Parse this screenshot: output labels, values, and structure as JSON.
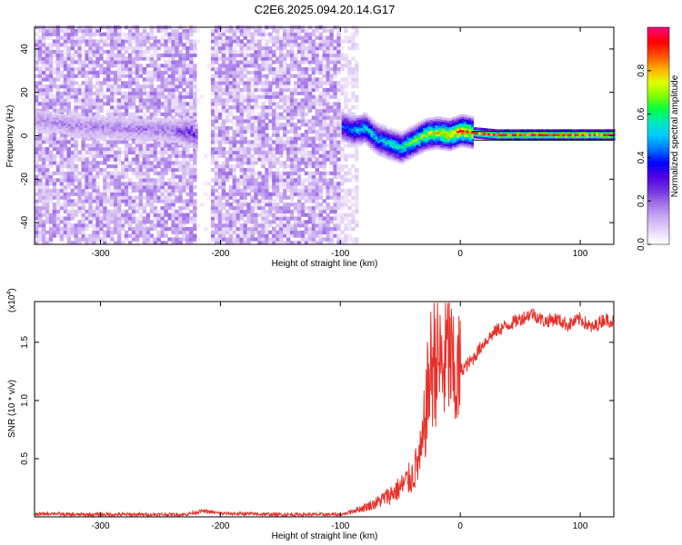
{
  "title": "C2E6.2025.094.20.14.G17",
  "chart_data": [
    {
      "type": "heatmap",
      "title": "C2E6.2025.094.20.14.G17",
      "xlabel": "Height of straight line (km)",
      "ylabel": "Frequency (Hz)",
      "xlim": [
        -355,
        128
      ],
      "ylim": [
        -50,
        50
      ],
      "xticks": [
        -300,
        -200,
        -100,
        0,
        100
      ],
      "yticks": [
        -40,
        -20,
        0,
        20,
        40
      ],
      "xtick_labels": [
        "-300",
        "-200",
        "-100",
        "0",
        "100"
      ],
      "ytick_labels": [
        "-40",
        "-20",
        "0",
        "20",
        "40"
      ],
      "colorbar": {
        "label": "Normalized spectral amplitude",
        "range": [
          0,
          1
        ],
        "ticks": [
          0.0,
          0.2,
          0.4,
          0.6,
          0.8
        ],
        "tick_labels": [
          "0.0",
          "0.2",
          "0.4",
          "0.6",
          "0.8"
        ],
        "colormap": [
          "#ffffff",
          "#e4d4f8",
          "#c8a8f0",
          "#a070e8",
          "#7030e0",
          "#4f00e0",
          "#0000ff",
          "#0070ff",
          "#00c8ff",
          "#00e8c0",
          "#00ff40",
          "#80ff00",
          "#e0ff00",
          "#ffb000",
          "#ff5000",
          "#ff0000",
          "#ff0070"
        ]
      },
      "regions": [
        {
          "name": "noise-left",
          "x": [
            -355,
            -220
          ],
          "freq": [
            -50,
            50
          ],
          "amplitude": 0.12
        },
        {
          "name": "noise-gap",
          "x": [
            -220,
            -208
          ],
          "freq": [
            -50,
            50
          ],
          "amplitude": 0.02
        },
        {
          "name": "noise-right",
          "x": [
            -208,
            -100
          ],
          "freq": [
            -50,
            50
          ],
          "amplitude": 0.12
        },
        {
          "name": "noise-edge",
          "x": [
            -100,
            -86
          ],
          "freq": [
            -50,
            50
          ],
          "amplitude": 0.05
        }
      ],
      "band_trace": [
        {
          "x": -355,
          "f": 7,
          "amp": 0.15
        },
        {
          "x": -320,
          "f": 4,
          "amp": 0.16
        },
        {
          "x": -280,
          "f": 3,
          "amp": 0.17
        },
        {
          "x": -240,
          "f": 2,
          "amp": 0.18
        },
        {
          "x": -225,
          "f": 1,
          "amp": 0.28
        },
        {
          "x": -215,
          "f": -3,
          "amp": 0.22
        },
        {
          "x": -100,
          "f": 4,
          "amp": 0.4
        },
        {
          "x": -90,
          "f": 2,
          "amp": 0.48
        },
        {
          "x": -80,
          "f": 3,
          "amp": 0.55
        },
        {
          "x": -70,
          "f": -2,
          "amp": 0.5
        },
        {
          "x": -60,
          "f": -4,
          "amp": 0.55
        },
        {
          "x": -50,
          "f": -6,
          "amp": 0.58
        },
        {
          "x": -40,
          "f": -3,
          "amp": 0.65
        },
        {
          "x": -30,
          "f": 0,
          "amp": 0.72
        },
        {
          "x": -20,
          "f": 1,
          "amp": 0.78
        },
        {
          "x": -10,
          "f": 0,
          "amp": 0.82
        },
        {
          "x": 0,
          "f": 2,
          "amp": 0.88
        },
        {
          "x": 10,
          "f": 1,
          "amp": 0.85
        },
        {
          "x": 30,
          "f": 0,
          "amp": 0.86
        },
        {
          "x": 60,
          "f": 0,
          "amp": 0.9
        },
        {
          "x": 90,
          "f": 0,
          "amp": 0.92
        },
        {
          "x": 128,
          "f": 0,
          "amp": 0.9
        }
      ],
      "steady_band_start_x": 10
    },
    {
      "type": "line",
      "xlabel": "Height of straight line (km)",
      "ylabel": "SNR (10 * v/v)",
      "y_multiplier_label": "(x10",
      "y_multiplier_exp": "4",
      "y_multiplier_close": ")",
      "xlim": [
        -355,
        128
      ],
      "ylim": [
        0,
        1.85
      ],
      "xticks": [
        -300,
        -200,
        -100,
        0,
        100
      ],
      "yticks": [
        0.5,
        1.0,
        1.5
      ],
      "xtick_labels": [
        "-300",
        "-200",
        "-100",
        "0",
        "100"
      ],
      "ytick_labels": [
        "0.5",
        "1.0",
        "1.5"
      ],
      "color": "#e8302a",
      "series": [
        {
          "name": "SNR",
          "x": [
            -355,
            -340,
            -330,
            -300,
            -260,
            -230,
            -215,
            -200,
            -150,
            -120,
            -100,
            -95,
            -90,
            -80,
            -70,
            -60,
            -50,
            -40,
            -32,
            -28,
            -24,
            -20,
            -15,
            -10,
            -5,
            0,
            10,
            20,
            30,
            40,
            50,
            60,
            70,
            80,
            90,
            100,
            110,
            120,
            128
          ],
          "y": [
            0.02,
            0.03,
            0.02,
            0.02,
            0.02,
            0.02,
            0.05,
            0.03,
            0.02,
            0.02,
            0.02,
            0.03,
            0.05,
            0.08,
            0.12,
            0.18,
            0.25,
            0.35,
            0.55,
            1.0,
            1.3,
            1.4,
            1.25,
            1.45,
            1.15,
            1.25,
            1.35,
            1.5,
            1.6,
            1.65,
            1.7,
            1.75,
            1.68,
            1.7,
            1.65,
            1.7,
            1.62,
            1.7,
            1.68
          ]
        }
      ]
    }
  ]
}
